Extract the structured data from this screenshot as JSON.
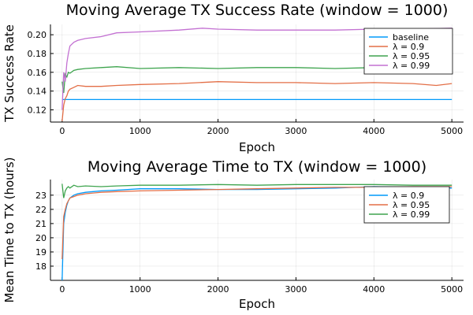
{
  "chart_data": [
    {
      "type": "line",
      "title": "Moving Average TX Success Rate (window = 1000)",
      "xlabel": "Epoch",
      "ylabel": "TX Success Rate",
      "xlim": [
        -150,
        5150
      ],
      "ylim": [
        0.107,
        0.211
      ],
      "xticks": [
        0,
        1000,
        2000,
        3000,
        4000,
        5000
      ],
      "yticks": [
        0.12,
        0.14,
        0.16,
        0.18,
        0.2
      ],
      "ytick_labels": [
        "0.12",
        "0.14",
        "0.16",
        "0.18",
        "0.20"
      ],
      "grid": true,
      "legend": "top-right",
      "series": [
        {
          "name": "baseline",
          "color": "#009AFA",
          "x": [
            0,
            5000
          ],
          "y": [
            0.131,
            0.131
          ]
        },
        {
          "name": "λ = 0.9",
          "color": "#E36F47",
          "x": [
            0,
            20,
            40,
            60,
            80,
            100,
            150,
            200,
            300,
            500,
            700,
            1000,
            1500,
            2000,
            2500,
            3000,
            3500,
            4000,
            4500,
            4800,
            5000
          ],
          "y": [
            0.108,
            0.125,
            0.132,
            0.135,
            0.14,
            0.142,
            0.144,
            0.146,
            0.145,
            0.145,
            0.146,
            0.147,
            0.148,
            0.15,
            0.149,
            0.149,
            0.148,
            0.149,
            0.148,
            0.146,
            0.148
          ]
        },
        {
          "name": "λ = 0.95",
          "color": "#3EA44E",
          "x": [
            0,
            20,
            40,
            60,
            80,
            100,
            150,
            200,
            300,
            500,
            700,
            1000,
            1500,
            2000,
            2500,
            3000,
            3500,
            4000,
            4500,
            5000
          ],
          "y": [
            0.15,
            0.138,
            0.158,
            0.155,
            0.16,
            0.159,
            0.162,
            0.163,
            0.164,
            0.165,
            0.166,
            0.164,
            0.165,
            0.164,
            0.165,
            0.165,
            0.164,
            0.165,
            0.165,
            0.165
          ]
        },
        {
          "name": "λ = 0.99",
          "color": "#C371D2",
          "x": [
            0,
            20,
            40,
            60,
            80,
            100,
            150,
            200,
            300,
            500,
            700,
            1000,
            1500,
            1800,
            2000,
            2500,
            3000,
            3500,
            4000,
            4500,
            5000
          ],
          "y": [
            0.12,
            0.16,
            0.15,
            0.17,
            0.18,
            0.188,
            0.192,
            0.194,
            0.196,
            0.198,
            0.202,
            0.203,
            0.205,
            0.207,
            0.206,
            0.205,
            0.205,
            0.205,
            0.206,
            0.206,
            0.207
          ]
        }
      ]
    },
    {
      "type": "line",
      "title": "Moving Average Time to TX (window = 1000)",
      "xlabel": "Epoch",
      "ylabel": "Mean Time to TX (hours)",
      "xlim": [
        -150,
        5150
      ],
      "ylim": [
        17.0,
        24.1
      ],
      "xticks": [
        0,
        1000,
        2000,
        3000,
        4000,
        5000
      ],
      "yticks": [
        18,
        19,
        20,
        21,
        22,
        23
      ],
      "ytick_labels": [
        "18",
        "19",
        "20",
        "21",
        "22",
        "23"
      ],
      "grid": true,
      "legend": "top-right",
      "series": [
        {
          "name": "λ = 0.9",
          "color": "#009AFA",
          "x": [
            0,
            20,
            40,
            60,
            80,
            100,
            150,
            200,
            300,
            500,
            700,
            1000,
            1500,
            2000,
            2500,
            3000,
            3500,
            4000,
            4500,
            5000
          ],
          "y": [
            17.0,
            21.0,
            21.8,
            22.3,
            22.6,
            22.8,
            23.0,
            23.1,
            23.2,
            23.3,
            23.35,
            23.45,
            23.45,
            23.4,
            23.4,
            23.45,
            23.5,
            23.6,
            23.55,
            23.5
          ]
        },
        {
          "name": "λ = 0.95",
          "color": "#E36F47",
          "x": [
            0,
            20,
            40,
            60,
            80,
            100,
            150,
            200,
            300,
            500,
            700,
            1000,
            1500,
            2000,
            2500,
            3000,
            3500,
            4000,
            4500,
            5000
          ],
          "y": [
            18.5,
            21.5,
            22.0,
            22.4,
            22.6,
            22.8,
            22.9,
            23.0,
            23.1,
            23.2,
            23.25,
            23.3,
            23.35,
            23.4,
            23.45,
            23.5,
            23.55,
            23.55,
            23.6,
            23.6
          ]
        },
        {
          "name": "λ = 0.99",
          "color": "#3EA44E",
          "x": [
            0,
            20,
            40,
            60,
            80,
            100,
            150,
            200,
            300,
            500,
            700,
            1000,
            1500,
            2000,
            2500,
            3000,
            3500,
            4000,
            4500,
            5000
          ],
          "y": [
            23.8,
            22.8,
            23.3,
            23.5,
            23.6,
            23.5,
            23.7,
            23.6,
            23.65,
            23.6,
            23.65,
            23.7,
            23.7,
            23.75,
            23.7,
            23.75,
            23.75,
            23.75,
            23.7,
            23.7
          ]
        }
      ]
    }
  ]
}
